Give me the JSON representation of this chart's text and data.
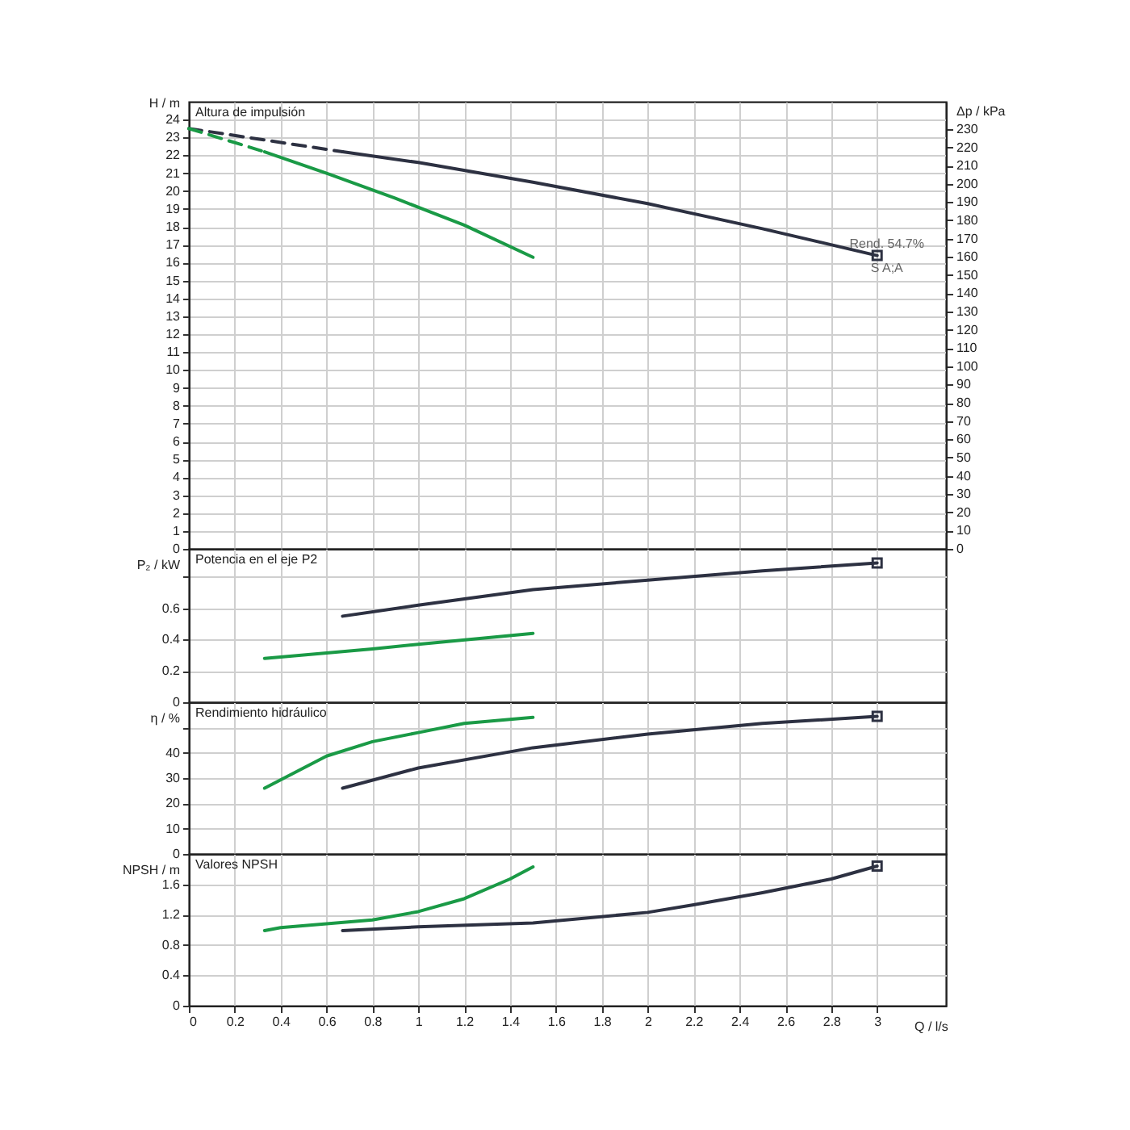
{
  "chart_data": [
    {
      "type": "line",
      "title": "Altura de impulsión",
      "ylabel": "H / m",
      "y2label": "Δp / kPa",
      "xlim": [
        0,
        3.3
      ],
      "xticks": [
        0,
        0.2,
        0.4,
        0.6,
        0.8,
        1,
        1.2,
        1.4,
        1.6,
        1.8,
        2,
        2.2,
        2.4,
        2.6,
        2.8,
        3
      ],
      "ylim": [
        0,
        25
      ],
      "yticks": [
        0,
        1,
        2,
        3,
        4,
        5,
        6,
        7,
        8,
        9,
        10,
        11,
        12,
        13,
        14,
        15,
        16,
        17,
        18,
        19,
        20,
        21,
        22,
        23,
        24
      ],
      "y2lim": [
        0,
        245
      ],
      "y2ticks": [
        0,
        10,
        20,
        30,
        40,
        50,
        60,
        70,
        80,
        90,
        100,
        110,
        120,
        130,
        140,
        150,
        160,
        170,
        180,
        190,
        200,
        210,
        220,
        230
      ],
      "grid": true,
      "tick_labels": "y",
      "annotations": [
        {
          "text": "Rend.  54.7%",
          "x": 3,
          "y": 16.4
        },
        {
          "text": "S A;A",
          "x": 3,
          "y": 16.4
        }
      ],
      "series": [
        {
          "color": "#2d3142",
          "line_style": "dashed",
          "x": [
            0,
            0.67
          ],
          "values": [
            23.5,
            22.2
          ]
        },
        {
          "color": "#2d3142",
          "line_style": "solid",
          "x": [
            0.67,
            1,
            1.5,
            2,
            2.5,
            3
          ],
          "values": [
            22.2,
            21.6,
            20.5,
            19.3,
            17.9,
            16.4
          ]
        },
        {
          "color": "#1a9a46",
          "line_style": "dashed",
          "x": [
            0,
            0.33
          ],
          "values": [
            23.5,
            22.2
          ]
        },
        {
          "color": "#1a9a46",
          "line_style": "solid",
          "x": [
            0.33,
            0.6,
            0.9,
            1.2,
            1.5
          ],
          "values": [
            22.2,
            21.0,
            19.6,
            18.1,
            16.3
          ]
        },
        {
          "type": "scatter",
          "marker": "square",
          "color": "#2d3142",
          "x": [
            3
          ],
          "values": [
            16.4
          ]
        }
      ]
    },
    {
      "type": "line",
      "title": "Potencia en el eje P2",
      "ylabel": "P₂ / kW",
      "xlim": [
        0,
        3.3
      ],
      "xticks": [
        0,
        0.2,
        0.4,
        0.6,
        0.8,
        1,
        1.2,
        1.4,
        1.6,
        1.8,
        2,
        2.2,
        2.4,
        2.6,
        2.8,
        3
      ],
      "ylim": [
        0,
        0.98
      ],
      "yticks": [
        0,
        0.2,
        0.4,
        0.6,
        {
          "value": 0.8,
          "label": null
        }
      ],
      "grid": true,
      "tick_labels": "y",
      "series": [
        {
          "color": "#2d3142",
          "line_style": "solid",
          "x": [
            0.67,
            1,
            1.5,
            2,
            2.5,
            3
          ],
          "values": [
            0.55,
            0.62,
            0.72,
            0.78,
            0.84,
            0.89
          ]
        },
        {
          "color": "#1a9a46",
          "line_style": "solid",
          "x": [
            0.33,
            0.8,
            1,
            1.5
          ],
          "values": [
            0.28,
            0.34,
            0.37,
            0.44
          ]
        },
        {
          "type": "scatter",
          "marker": "square",
          "color": "#2d3142",
          "x": [
            3
          ],
          "values": [
            0.89
          ]
        }
      ]
    },
    {
      "type": "line",
      "title": "Rendimiento hidráulico",
      "ylabel": "η / %",
      "xlim": [
        0,
        3.3
      ],
      "xticks": [
        0,
        0.2,
        0.4,
        0.6,
        0.8,
        1,
        1.2,
        1.4,
        1.6,
        1.8,
        2,
        2.2,
        2.4,
        2.6,
        2.8,
        3
      ],
      "ylim": [
        0,
        60
      ],
      "yticks": [
        0,
        10,
        20,
        30,
        40,
        {
          "value": 50,
          "label": null
        }
      ],
      "grid": true,
      "tick_labels": "y",
      "series": [
        {
          "color": "#2d3142",
          "line_style": "solid",
          "x": [
            0.67,
            1,
            1.5,
            2,
            2.5,
            3
          ],
          "values": [
            26,
            34,
            42,
            47.4,
            51.6,
            54.4
          ]
        },
        {
          "color": "#1a9a46",
          "line_style": "solid",
          "x": [
            0.33,
            0.6,
            0.8,
            1,
            1.2,
            1.5
          ],
          "values": [
            26,
            38.7,
            44.4,
            48,
            51.6,
            54
          ]
        },
        {
          "type": "scatter",
          "marker": "square",
          "color": "#2d3142",
          "x": [
            3
          ],
          "values": [
            54.4
          ]
        }
      ]
    },
    {
      "type": "line",
      "title": "Valores NPSH",
      "ylabel": "NPSH / m",
      "xlabel": "Q / l/s",
      "xlim": [
        0,
        3.3
      ],
      "xticks": [
        0,
        0.2,
        0.4,
        0.6,
        0.8,
        1,
        1.2,
        1.4,
        1.6,
        1.8,
        2,
        2.2,
        2.4,
        2.6,
        2.8,
        3
      ],
      "ylim": [
        0,
        2
      ],
      "yticks": [
        0,
        0.4,
        0.8,
        1.2,
        1.6
      ],
      "grid": true,
      "series": [
        {
          "color": "#2d3142",
          "line_style": "solid",
          "x": [
            0.67,
            1,
            1.5,
            2,
            2.2,
            2.5,
            2.8,
            3
          ],
          "values": [
            0.99,
            1.04,
            1.09,
            1.23,
            1.33,
            1.49,
            1.67,
            1.84
          ]
        },
        {
          "color": "#1a9a46",
          "line_style": "solid",
          "x": [
            0.33,
            0.4,
            0.6,
            0.8,
            1,
            1.2,
            1.4,
            1.5
          ],
          "values": [
            0.99,
            1.03,
            1.08,
            1.13,
            1.24,
            1.41,
            1.67,
            1.83
          ]
        },
        {
          "type": "scatter",
          "marker": "square",
          "color": "#2d3142",
          "x": [
            3
          ],
          "values": [
            1.84
          ]
        }
      ]
    }
  ]
}
